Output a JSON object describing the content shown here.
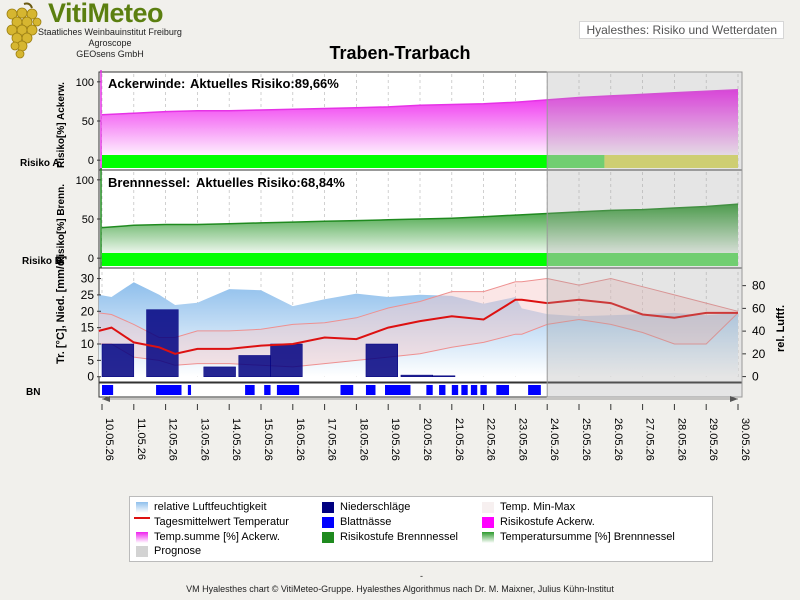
{
  "header": {
    "logo_title": "VitiMeteo",
    "logo_lines": [
      "Staatliches Weinbauinstitut Freiburg",
      "Agroscope",
      "GEOsens GmbH"
    ],
    "badge": "Hyalesthes: Risiko und Wetterdaten"
  },
  "footer": {
    "dash": "-",
    "text": "VM Hyalesthes chart © VitiMeteo-Gruppe. Hyalesthes Algorithmus nach Dr. M. Maixner, Julius Kühn-Institut"
  },
  "colors": {
    "ackerwinde": "#e632e6",
    "brennnessel": "#1f8a1f",
    "risk_green": "#00ff00",
    "risk_light_green": "#5fe05f",
    "risk_yellow": "#e0e060",
    "temperature": "#dd1111",
    "rain": "#000080",
    "wetness": "#0000ff",
    "humidity": "#9cc7ee",
    "forecast": "#d3d3d3"
  },
  "chart_data": {
    "type": "area",
    "title": "Traben-Trarbach",
    "dates": [
      "10.05.26",
      "11.05.26",
      "12.05.26",
      "13.05.26",
      "14.05.26",
      "15.05.26",
      "16.05.26",
      "17.05.26",
      "18.05.26",
      "19.05.26",
      "20.05.26",
      "21.05.26",
      "22.05.26",
      "23.05.26",
      "24.05.26",
      "25.05.26",
      "26.05.26",
      "27.05.26",
      "28.05.26",
      "29.05.26",
      "30.05.26"
    ],
    "forecast_start": "24.05.26",
    "ackerwinde": {
      "label": "Ackerwinde:",
      "risk_text": "Aktuelles Risiko:89,66%",
      "y_axis_label": "Risiko[%] Ackerw.",
      "row_label": "Risiko A.",
      "yticks": [
        0,
        50,
        100
      ],
      "ylim": [
        -10,
        110
      ],
      "x": [
        0,
        1,
        2,
        3,
        4,
        5,
        6,
        7,
        8,
        9,
        10,
        11,
        12,
        13,
        14,
        15,
        16,
        17,
        18,
        19,
        20
      ],
      "values": [
        58,
        60,
        62,
        63,
        63,
        64,
        65,
        66,
        67,
        68,
        70,
        71,
        72,
        74,
        77,
        80,
        82,
        84,
        86,
        88,
        90
      ],
      "risk_bar": [
        {
          "from": 0,
          "to": 14,
          "level": "green"
        },
        {
          "from": 14,
          "to": 15.8,
          "level": "light_green"
        },
        {
          "from": 15.8,
          "to": 20,
          "level": "yellow"
        }
      ]
    },
    "brennnessel": {
      "label": "Brennnessel:",
      "risk_text": "Aktuelles Risiko:68,84%",
      "y_axis_label": "Risiko[%] Brenn.",
      "row_label": "Risiko B.",
      "yticks": [
        0,
        50,
        100
      ],
      "ylim": [
        -10,
        110
      ],
      "x": [
        0,
        1,
        2,
        3,
        4,
        5,
        6,
        7,
        8,
        9,
        10,
        11,
        12,
        13,
        14,
        15,
        16,
        17,
        18,
        19,
        20
      ],
      "values": [
        39,
        42,
        43,
        43,
        44,
        45,
        46,
        47,
        48,
        49,
        50,
        51,
        53,
        55,
        57,
        59,
        61,
        62,
        64,
        66,
        69
      ],
      "risk_bar": [
        {
          "from": 0,
          "to": 14,
          "level": "green"
        },
        {
          "from": 14,
          "to": 20,
          "level": "light_green"
        }
      ]
    },
    "weather": {
      "y_left_label": "Tr. [°C], Nied. [mm/d]",
      "y_right_label": "rel. Luftf.",
      "left_ticks": [
        0,
        5,
        10,
        15,
        20,
        25,
        30
      ],
      "left_ylim": [
        -1,
        32
      ],
      "right_ticks": [
        0,
        20,
        40,
        60,
        80
      ],
      "right_ylim": [
        -3,
        92
      ],
      "row_label": "BN",
      "x": [
        -0.1,
        0.3,
        1,
        1.8,
        2.3,
        3,
        4,
        5,
        6,
        7,
        8,
        9,
        10,
        11,
        12,
        13,
        13.2,
        14,
        15,
        16,
        17,
        18,
        19,
        20
      ],
      "humidity": [
        72,
        70,
        83,
        72,
        63,
        65,
        77,
        76,
        62,
        68,
        73,
        70,
        72,
        71,
        64,
        70,
        60,
        55,
        53,
        54,
        55,
        56,
        54,
        56
      ],
      "temp_mean": [
        14,
        15,
        10.5,
        9,
        7,
        8.5,
        8.5,
        9.5,
        10,
        12,
        11.5,
        15,
        17,
        18.5,
        17.5,
        23.5,
        23.5,
        22.5,
        23.5,
        22.5,
        19,
        18,
        19.5,
        19.5
      ],
      "temp_min": [
        10,
        10,
        6,
        5,
        3.5,
        4,
        4,
        3.5,
        3,
        4,
        5,
        6,
        7,
        9,
        10.5,
        13,
        13,
        16,
        17.5,
        16,
        13.5,
        10,
        10,
        19.5
      ],
      "temp_max": [
        19.5,
        19,
        16,
        12,
        12,
        14,
        14,
        14.5,
        16,
        16.5,
        18,
        21,
        23,
        26,
        26,
        29,
        29,
        30,
        28,
        30,
        27.5,
        25,
        22.5,
        20
      ],
      "rain": [
        {
          "from": 0,
          "to": 1,
          "value": 10
        },
        {
          "from": 1.4,
          "to": 2.4,
          "value": 20.5
        },
        {
          "from": 3.2,
          "to": 4.2,
          "value": 3
        },
        {
          "from": 4.3,
          "to": 5.3,
          "value": 6.5
        },
        {
          "from": 5.3,
          "to": 6.3,
          "value": 10
        },
        {
          "from": 8.3,
          "to": 9.3,
          "value": 10
        },
        {
          "from": 9.4,
          "to": 10.4,
          "value": 0.5
        },
        {
          "from": 10.4,
          "to": 11.1,
          "value": 0.3
        }
      ],
      "leaf_wetness": [
        [
          0,
          0.35
        ],
        [
          1.7,
          2.5
        ],
        [
          2.7,
          2.8
        ],
        [
          4.5,
          4.8
        ],
        [
          5.1,
          5.3
        ],
        [
          5.5,
          6.2
        ],
        [
          7.5,
          7.9
        ],
        [
          8.3,
          8.6
        ],
        [
          8.9,
          9.7
        ],
        [
          10.2,
          10.4
        ],
        [
          10.6,
          10.8
        ],
        [
          11,
          11.2
        ],
        [
          11.3,
          11.5
        ],
        [
          11.6,
          11.8
        ],
        [
          11.9,
          12.1
        ],
        [
          12.4,
          12.8
        ],
        [
          13.4,
          13.8
        ]
      ]
    },
    "legend": [
      {
        "label": "relative Luftfeuchtigkeit",
        "swatch": "humidity-grad"
      },
      {
        "label": "Niederschläge",
        "swatch": "rain"
      },
      {
        "label": "Temp. Min-Max",
        "swatch": "minmax"
      },
      {
        "label": "Tagesmittelwert Temperatur",
        "swatch": "line"
      },
      {
        "label": "Blattnässe",
        "swatch": "wetness"
      },
      {
        "label": "Risikostufe Ackerw.",
        "swatch": "magenta"
      },
      {
        "label": "Temp.summe [%] Ackerw.",
        "swatch": "magenta-grad"
      },
      {
        "label": "Risikostufe Brennnessel",
        "swatch": "green"
      },
      {
        "label": "Temperatursumme [%] Brennnessel",
        "swatch": "green-grad"
      },
      {
        "label": "Prognose",
        "swatch": "forecast"
      }
    ]
  }
}
